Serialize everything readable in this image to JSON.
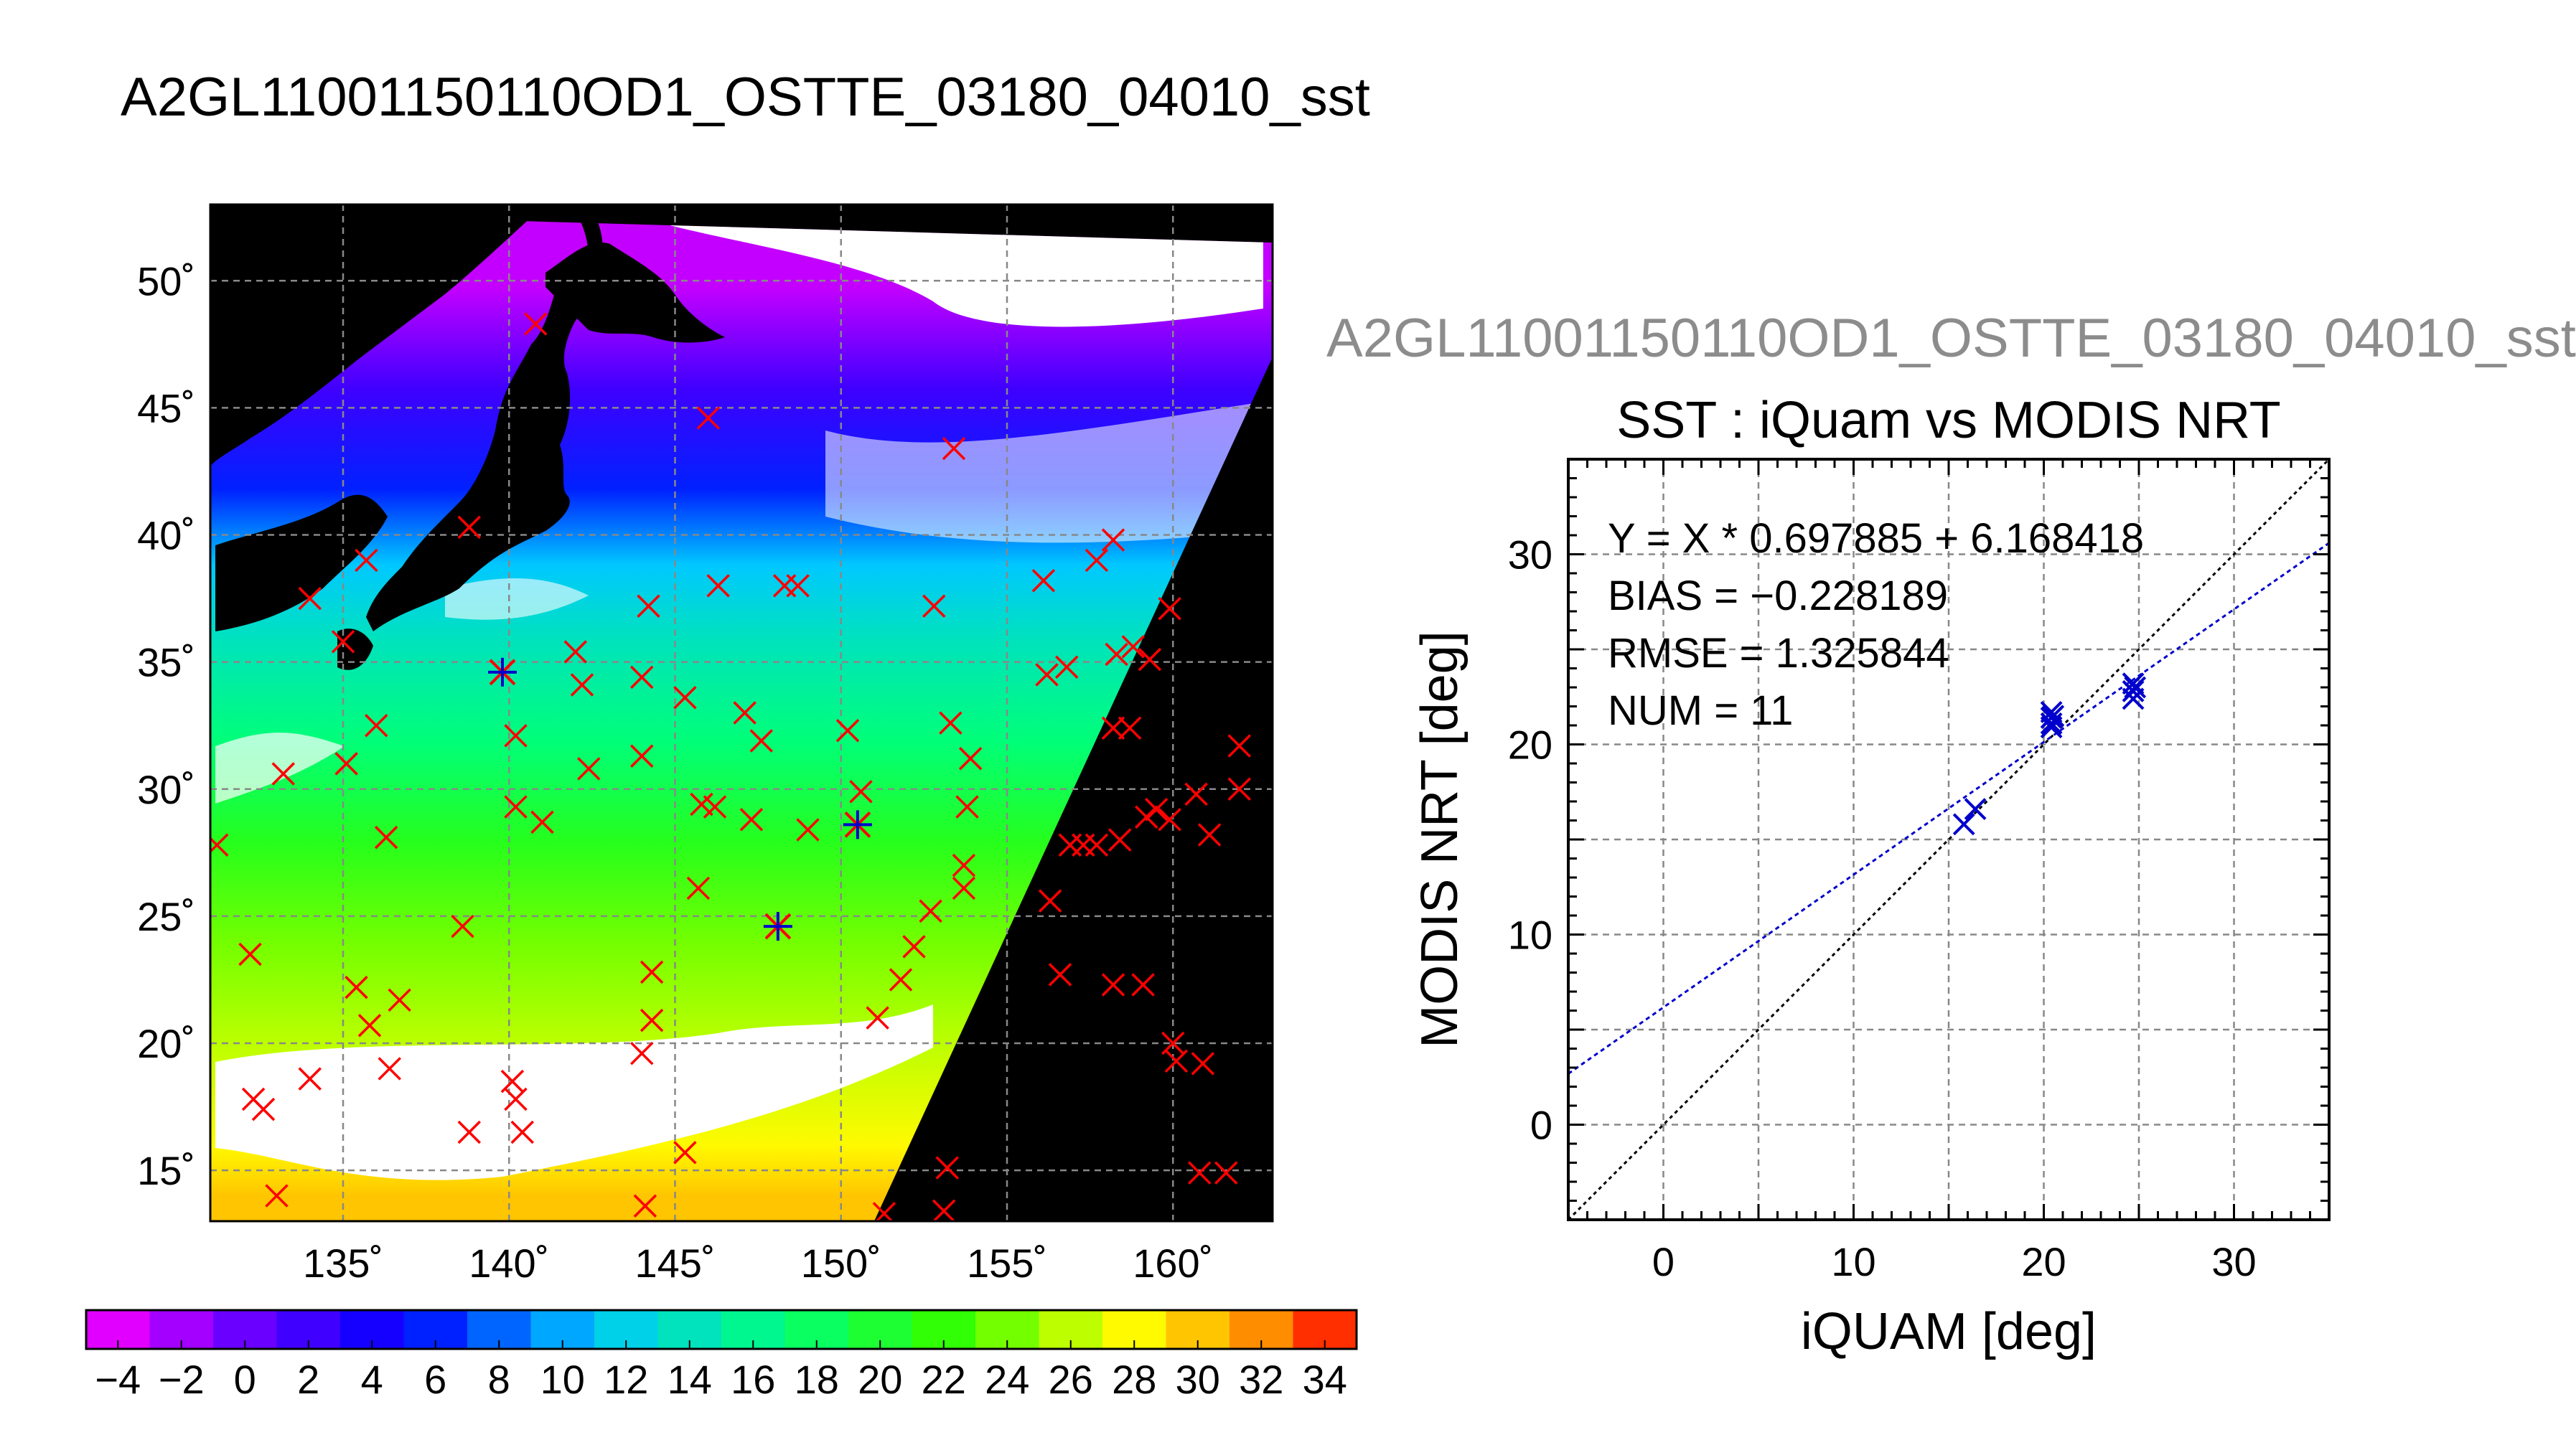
{
  "page_title": "A2GL11001150110OD1_OSTTE_03180_04010_sst",
  "side_title": "A2GL11001150110OD1_OSTTE_03180_04010_sst",
  "colors": {
    "background": "#ffffff",
    "land": "#000000",
    "no_data": "#ffffff",
    "match_marker": "#ff0000",
    "valid_match_marker": "#0000cc",
    "fit_line": "#0000cc",
    "identity_line": "#000000",
    "side_title": "#8c8c8c"
  },
  "chart_data": [
    {
      "type": "heatmap",
      "kind": "map",
      "projection": "lon-lat",
      "xlim": [
        131,
        163
      ],
      "ylim": [
        13,
        53
      ],
      "xticks": [
        135,
        140,
        145,
        150,
        155,
        160
      ],
      "yticks": [
        15,
        20,
        25,
        30,
        35,
        40,
        45,
        50
      ],
      "xtick_labels": [
        "135˚",
        "140˚",
        "145˚",
        "150˚",
        "155˚",
        "160˚"
      ],
      "ytick_labels": [
        "15˚",
        "20˚",
        "25˚",
        "30˚",
        "35˚",
        "40˚",
        "45˚",
        "50˚"
      ],
      "grid": true,
      "colormap": "rainbow",
      "colorbar": {
        "vmin": -5,
        "vmax": 35,
        "ticks": [
          -4,
          -2,
          0,
          2,
          4,
          6,
          8,
          10,
          12,
          14,
          16,
          18,
          20,
          22,
          24,
          26,
          28,
          30,
          32,
          34
        ],
        "tick_labels": [
          "−4",
          "−2",
          "0",
          "2",
          "4",
          "6",
          "8",
          "10",
          "12",
          "14",
          "16",
          "18",
          "20",
          "22",
          "24",
          "26",
          "28",
          "30",
          "32",
          "34"
        ]
      },
      "swath_corners": [
        [
          131,
          52.7
        ],
        [
          163,
          51.5
        ],
        [
          163,
          47
        ],
        [
          151,
          13
        ],
        [
          131,
          13
        ]
      ],
      "sst_field": [
        {
          "lat": 50,
          "value": -3
        },
        {
          "lat": 46,
          "value": 2
        },
        {
          "lat": 42,
          "value": 6
        },
        {
          "lat": 39,
          "value": 11
        },
        {
          "lat": 36,
          "value": 14
        },
        {
          "lat": 32,
          "value": 17
        },
        {
          "lat": 28,
          "value": 21
        },
        {
          "lat": 24,
          "value": 24
        },
        {
          "lat": 20,
          "value": 26
        },
        {
          "lat": 16,
          "value": 28
        },
        {
          "lat": 14,
          "value": 30
        }
      ],
      "matchups_excluded": [
        [
          140.8,
          48.3
        ],
        [
          146.0,
          44.6
        ],
        [
          153.4,
          43.4
        ],
        [
          138.8,
          40.3
        ],
        [
          135.7,
          39.0
        ],
        [
          134.0,
          37.5
        ],
        [
          135.0,
          35.8
        ],
        [
          144.2,
          37.2
        ],
        [
          146.3,
          38.0
        ],
        [
          148.3,
          38.0
        ],
        [
          148.7,
          38.0
        ],
        [
          152.8,
          37.2
        ],
        [
          142.0,
          35.4
        ],
        [
          142.2,
          34.1
        ],
        [
          144.0,
          34.4
        ],
        [
          145.3,
          33.6
        ],
        [
          147.1,
          33.0
        ],
        [
          140.2,
          32.1
        ],
        [
          136.0,
          32.5
        ],
        [
          135.1,
          31.0
        ],
        [
          133.2,
          30.6
        ],
        [
          142.4,
          30.8
        ],
        [
          144.0,
          31.3
        ],
        [
          146.2,
          29.3
        ],
        [
          147.6,
          31.9
        ],
        [
          150.2,
          32.3
        ],
        [
          150.6,
          29.9
        ],
        [
          153.3,
          32.6
        ],
        [
          153.9,
          31.2
        ],
        [
          153.8,
          29.3
        ],
        [
          153.7,
          27.0
        ],
        [
          153.7,
          26.1
        ],
        [
          156.3,
          25.6
        ],
        [
          131.2,
          27.8
        ],
        [
          136.3,
          28.1
        ],
        [
          140.2,
          29.3
        ],
        [
          141.0,
          28.7
        ],
        [
          145.8,
          29.4
        ],
        [
          147.3,
          28.8
        ],
        [
          149.0,
          28.4
        ],
        [
          132.2,
          23.5
        ],
        [
          145.7,
          26.1
        ],
        [
          138.6,
          24.6
        ],
        [
          135.4,
          22.2
        ],
        [
          136.7,
          21.7
        ],
        [
          144.3,
          22.8
        ],
        [
          144.3,
          20.9
        ],
        [
          144.0,
          19.6
        ],
        [
          151.1,
          21.0
        ],
        [
          151.8,
          22.5
        ],
        [
          152.2,
          23.8
        ],
        [
          152.7,
          25.2
        ],
        [
          156.6,
          22.7
        ],
        [
          135.8,
          20.7
        ],
        [
          136.4,
          19.0
        ],
        [
          134.0,
          18.6
        ],
        [
          132.3,
          17.8
        ],
        [
          132.6,
          17.4
        ],
        [
          140.1,
          18.5
        ],
        [
          140.2,
          17.8
        ],
        [
          138.8,
          16.5
        ],
        [
          140.4,
          16.5
        ],
        [
          133.0,
          14.0
        ],
        [
          144.1,
          13.6
        ],
        [
          145.3,
          15.7
        ],
        [
          151.3,
          13.3
        ],
        [
          153.1,
          13.4
        ],
        [
          153.2,
          15.1
        ],
        [
          156.1,
          38.2
        ],
        [
          157.7,
          39.0
        ],
        [
          158.2,
          39.8
        ],
        [
          159.9,
          37.1
        ],
        [
          158.3,
          35.3
        ],
        [
          158.8,
          35.6
        ],
        [
          159.3,
          35.1
        ],
        [
          156.2,
          34.5
        ],
        [
          156.8,
          34.8
        ],
        [
          158.2,
          32.4
        ],
        [
          158.7,
          32.4
        ],
        [
          162.0,
          31.7
        ],
        [
          158.4,
          28.0
        ],
        [
          159.2,
          28.9
        ],
        [
          159.5,
          29.2
        ],
        [
          159.9,
          28.8
        ],
        [
          160.7,
          29.8
        ],
        [
          162.0,
          30.0
        ],
        [
          161.1,
          28.2
        ],
        [
          156.9,
          27.8
        ],
        [
          157.3,
          27.8
        ],
        [
          157.7,
          27.8
        ],
        [
          158.2,
          22.3
        ],
        [
          159.1,
          22.3
        ],
        [
          160.0,
          20.0
        ],
        [
          160.1,
          19.3
        ],
        [
          160.9,
          19.2
        ],
        [
          160.8,
          14.9
        ],
        [
          161.6,
          14.9
        ]
      ],
      "matchups_used": [
        [
          139.8,
          34.6
        ],
        [
          150.5,
          28.6
        ],
        [
          148.1,
          24.6
        ]
      ]
    },
    {
      "type": "scatter",
      "title": "SST : iQuam vs MODIS NRT",
      "xlabel": "iQUAM [deg]",
      "ylabel": "MODIS NRT [deg]",
      "xlim": [
        -5,
        35
      ],
      "ylim": [
        -5,
        35
      ],
      "xticks": [
        0,
        10,
        20,
        30
      ],
      "yticks": [
        0,
        10,
        20,
        30
      ],
      "grid": true,
      "points": [
        {
          "x": 15.8,
          "y": 15.8
        },
        {
          "x": 16.4,
          "y": 16.6
        },
        {
          "x": 20.4,
          "y": 20.9
        },
        {
          "x": 20.4,
          "y": 21.1
        },
        {
          "x": 20.4,
          "y": 21.4
        },
        {
          "x": 20.4,
          "y": 21.7
        },
        {
          "x": 20.5,
          "y": 21.5
        },
        {
          "x": 24.7,
          "y": 22.4
        },
        {
          "x": 24.7,
          "y": 22.8
        },
        {
          "x": 24.7,
          "y": 23.2
        },
        {
          "x": 24.8,
          "y": 23.0
        }
      ],
      "fit": {
        "slope": 0.697885,
        "intercept": 6.168418
      },
      "identity_line": true,
      "annotations": [
        "Y = X * 0.697885 + 6.168418",
        "BIAS = −0.228189",
        "RMSE = 1.325844",
        "NUM = 11"
      ]
    }
  ]
}
